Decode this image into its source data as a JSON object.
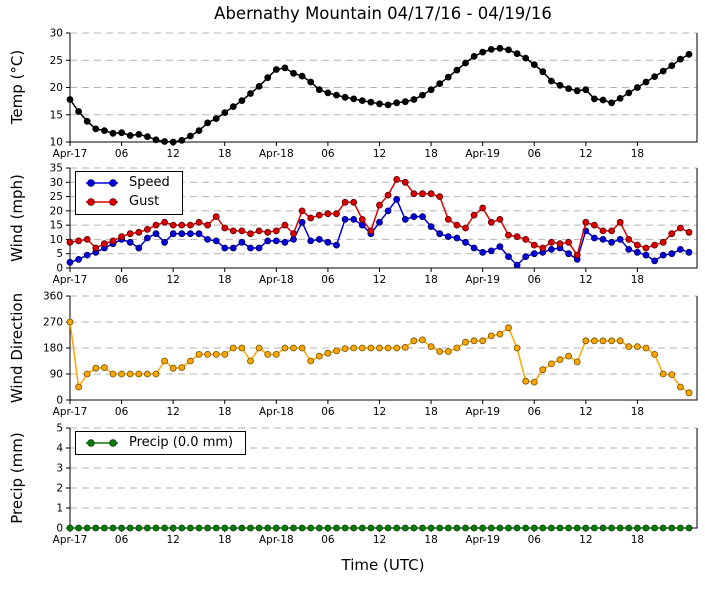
{
  "chart_data": {
    "type": "line",
    "title": "Abernathy Mountain 04/17/16 - 04/19/16",
    "xlabel": "Time (UTC)",
    "x_unit": "hours since Apr-17 00:00 UTC",
    "x_step": 1,
    "n_points": 73,
    "grid": "horizontal dashed gray",
    "grid_color": "#b3b3b3",
    "x_tick_labels": [
      "Apr-17",
      "06",
      "12",
      "18",
      "Apr-18",
      "06",
      "12",
      "18",
      "Apr-19",
      "06",
      "12",
      "18"
    ],
    "x_tick_hours": [
      0,
      6,
      12,
      18,
      24,
      30,
      36,
      42,
      48,
      54,
      60,
      66
    ],
    "panels": [
      {
        "name": "temperature",
        "ylabel": "Temp (°C)",
        "ylim": [
          10,
          30
        ],
        "yticks": [
          10,
          15,
          20,
          25,
          30
        ],
        "series": [
          {
            "name": "Temp",
            "color": "#000000",
            "edge": "#000000",
            "values": [
              17.8,
              15.6,
              13.8,
              12.4,
              12.1,
              11.6,
              11.7,
              11.2,
              11.4,
              11.0,
              10.4,
              10.1,
              10.0,
              10.3,
              11.1,
              12.1,
              13.5,
              14.3,
              15.4,
              16.5,
              17.6,
              18.9,
              20.2,
              21.8,
              23.3,
              23.6,
              22.6,
              22.1,
              21.0,
              19.6,
              19.0,
              18.6,
              18.2,
              17.9,
              17.6,
              17.3,
              17.0,
              16.8,
              17.2,
              17.4,
              17.8,
              18.6,
              19.6,
              20.7,
              21.9,
              23.2,
              24.5,
              25.7,
              26.5,
              27.0,
              27.2,
              26.9,
              26.2,
              25.4,
              24.2,
              22.9,
              21.2,
              20.4,
              19.8,
              19.4,
              19.6,
              17.9,
              17.7,
              17.2,
              18.0,
              19.0,
              20.0,
              21.0,
              22.0,
              23.0,
              24.0,
              25.2,
              26.1
            ]
          }
        ]
      },
      {
        "name": "wind",
        "ylabel": "Wind (mph)",
        "ylim": [
          0,
          35
        ],
        "yticks": [
          0,
          5,
          10,
          15,
          20,
          25,
          30,
          35
        ],
        "legend_position": "upper left",
        "series": [
          {
            "name": "Speed",
            "color": "#0000dd",
            "edge": "#000055",
            "values": [
              2,
              3,
              4.5,
              5.5,
              7,
              8.5,
              10,
              9,
              7,
              10.5,
              12,
              9,
              12,
              12,
              12,
              12,
              10,
              9.5,
              7,
              7,
              9,
              7,
              7,
              9.5,
              9.5,
              9,
              10,
              16,
              9.5,
              10,
              9,
              8,
              17,
              17,
              15,
              12,
              16,
              20,
              24,
              17,
              18,
              18,
              14.5,
              12,
              11,
              10.5,
              9,
              7,
              5.5,
              6,
              7.5,
              4,
              1,
              4,
              5,
              5.5,
              6.5,
              7,
              5,
              3,
              13,
              10.5,
              10,
              9,
              10,
              6.5,
              5.5,
              4.5,
              2.5,
              4.5,
              5,
              6.5,
              5.5
            ]
          },
          {
            "name": "Gust",
            "color": "#dd0000",
            "edge": "#550000",
            "values": [
              9,
              9.5,
              10,
              7,
              8.5,
              9.5,
              11,
              12,
              12.5,
              13.5,
              15,
              16,
              15,
              15,
              15,
              16,
              15,
              18,
              14,
              13,
              13,
              12,
              13,
              12.5,
              13,
              15,
              12,
              20,
              17.5,
              18.5,
              19,
              19,
              23,
              23,
              17,
              13,
              22,
              25.5,
              31,
              30,
              26,
              26,
              26,
              25,
              17,
              15,
              14,
              18.5,
              21,
              16,
              17,
              11.5,
              11,
              10,
              8,
              7,
              9,
              8.5,
              9,
              4.5,
              16,
              15,
              13,
              13,
              16,
              10,
              8,
              7,
              8,
              9,
              12,
              14,
              12.5
            ]
          }
        ]
      },
      {
        "name": "wind-direction",
        "ylabel": "Wind Direction",
        "ylim": [
          0,
          360
        ],
        "yticks": [
          0,
          90,
          180,
          270,
          360
        ],
        "series": [
          {
            "name": "Direction",
            "color": "#ffa500",
            "edge": "#6e5200",
            "values": [
              270,
              45,
              90,
              110,
              112,
              90,
              90,
              90,
              90,
              90,
              90,
              135,
              110,
              112,
              135,
              158,
              158,
              158,
              158,
              180,
              180,
              135,
              180,
              158,
              158,
              180,
              180,
              180,
              135,
              152,
              162,
              170,
              178,
              180,
              180,
              180,
              180,
              180,
              180,
              182,
              205,
              208,
              185,
              168,
              168,
              180,
              200,
              205,
              205,
              222,
              228,
              250,
              180,
              65,
              62,
              105,
              125,
              140,
              152,
              132,
              205,
              205,
              205,
              205,
              205,
              185,
              185,
              180,
              158,
              90,
              88,
              45,
              25
            ]
          }
        ]
      },
      {
        "name": "precip",
        "ylabel": "Precip (mm)",
        "ylim": [
          0,
          5
        ],
        "yticks": [
          0,
          1,
          2,
          3,
          4,
          5
        ],
        "legend_label": "Precip (0.0 mm)",
        "series": [
          {
            "name": "Precip",
            "color": "#0a7a0a",
            "edge": "#064006",
            "values": [
              0,
              0,
              0,
              0,
              0,
              0,
              0,
              0,
              0,
              0,
              0,
              0,
              0,
              0,
              0,
              0,
              0,
              0,
              0,
              0,
              0,
              0,
              0,
              0,
              0,
              0,
              0,
              0,
              0,
              0,
              0,
              0,
              0,
              0,
              0,
              0,
              0,
              0,
              0,
              0,
              0,
              0,
              0,
              0,
              0,
              0,
              0,
              0,
              0,
              0,
              0,
              0,
              0,
              0,
              0,
              0,
              0,
              0,
              0,
              0,
              0,
              0,
              0,
              0,
              0,
              0,
              0,
              0,
              0,
              0,
              0,
              0,
              0
            ]
          }
        ]
      }
    ]
  }
}
